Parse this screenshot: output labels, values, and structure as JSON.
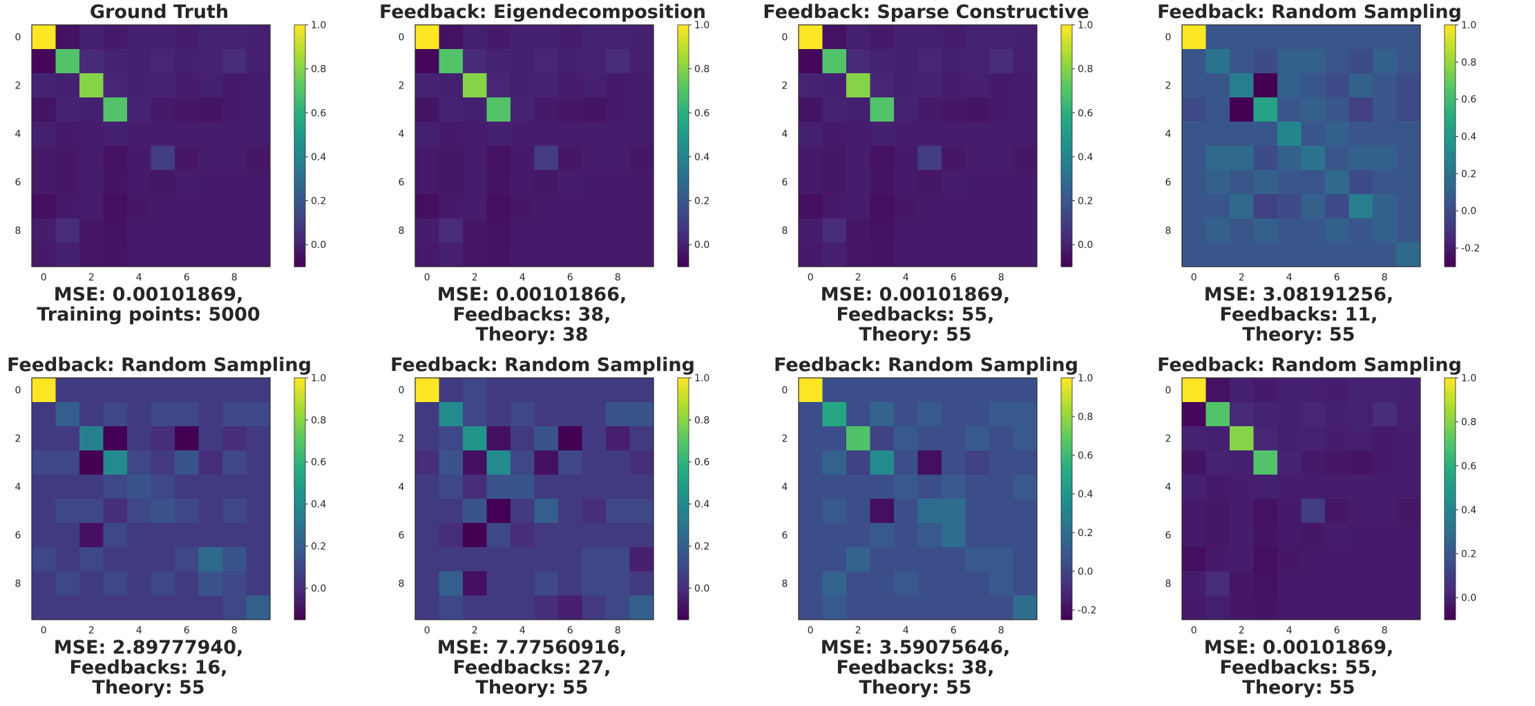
{
  "colors": {
    "colormap": "viridis",
    "text": "#262626",
    "axis_frame": "#262626"
  },
  "chart_data": [
    {
      "type": "heatmap",
      "title": "Ground Truth",
      "caption": [
        "MSE: 0.00101869,",
        "Training points: 5000"
      ],
      "x_ticks": [
        "0",
        "2",
        "4",
        "6",
        "8"
      ],
      "y_ticks": [
        "0",
        "2",
        "4",
        "6",
        "8"
      ],
      "colorbar": {
        "range": [
          -0.1,
          1.0
        ],
        "ticks": [
          "0.0",
          "0.2",
          "0.4",
          "0.6",
          "0.8",
          "1.0"
        ]
      },
      "matrix": [
        [
          1.0,
          -0.05,
          0.0,
          -0.02,
          0.0,
          0.0,
          -0.01,
          0.01,
          0.01,
          0.0
        ],
        [
          -0.08,
          0.7,
          0.03,
          0.01,
          0.0,
          0.02,
          0.0,
          0.01,
          0.04,
          0.0
        ],
        [
          0.01,
          0.0,
          0.8,
          0.02,
          0.0,
          0.01,
          -0.01,
          0.0,
          -0.02,
          -0.01
        ],
        [
          -0.04,
          0.01,
          0.0,
          0.7,
          0.01,
          -0.02,
          -0.03,
          -0.04,
          -0.02,
          -0.01
        ],
        [
          0.0,
          -0.02,
          -0.01,
          0.0,
          -0.01,
          -0.01,
          -0.01,
          -0.01,
          -0.01,
          -0.01
        ],
        [
          -0.02,
          -0.03,
          -0.01,
          -0.05,
          -0.02,
          0.1,
          -0.03,
          -0.01,
          -0.01,
          -0.03
        ],
        [
          -0.02,
          -0.03,
          -0.01,
          -0.04,
          -0.02,
          -0.03,
          -0.01,
          -0.02,
          -0.02,
          -0.02
        ],
        [
          -0.06,
          -0.02,
          -0.01,
          -0.06,
          -0.03,
          -0.02,
          -0.02,
          -0.02,
          -0.02,
          -0.02
        ],
        [
          -0.01,
          0.04,
          -0.03,
          -0.05,
          -0.02,
          -0.02,
          -0.02,
          -0.02,
          -0.02,
          -0.02
        ],
        [
          -0.02,
          0.0,
          -0.03,
          -0.04,
          -0.02,
          -0.02,
          -0.02,
          -0.02,
          -0.02,
          -0.02
        ]
      ]
    },
    {
      "type": "heatmap",
      "title": "Feedback: Eigendecomposition",
      "caption": [
        "MSE: 0.00101866,",
        "Feedbacks: 38,",
        "Theory: 38"
      ],
      "x_ticks": [
        "0",
        "2",
        "4",
        "6",
        "8"
      ],
      "y_ticks": [
        "0",
        "2",
        "4",
        "6",
        "8"
      ],
      "colorbar": {
        "range": [
          -0.1,
          1.0
        ],
        "ticks": [
          "0.0",
          "0.2",
          "0.4",
          "0.6",
          "0.8",
          "1.0"
        ]
      },
      "matrix": [
        [
          1.0,
          -0.05,
          0.0,
          -0.02,
          0.0,
          0.0,
          -0.01,
          0.01,
          0.01,
          0.0
        ],
        [
          -0.08,
          0.7,
          0.03,
          0.01,
          0.0,
          0.02,
          0.0,
          0.01,
          0.04,
          0.0
        ],
        [
          0.01,
          0.0,
          0.8,
          0.02,
          0.0,
          0.01,
          -0.01,
          0.0,
          -0.02,
          -0.01
        ],
        [
          -0.04,
          0.01,
          0.0,
          0.7,
          0.01,
          -0.02,
          -0.03,
          -0.04,
          -0.02,
          -0.01
        ],
        [
          0.0,
          -0.02,
          -0.01,
          0.0,
          -0.01,
          -0.01,
          -0.01,
          -0.01,
          -0.01,
          -0.01
        ],
        [
          -0.02,
          -0.03,
          -0.01,
          -0.05,
          -0.02,
          0.1,
          -0.03,
          -0.01,
          -0.01,
          -0.03
        ],
        [
          -0.02,
          -0.03,
          -0.01,
          -0.04,
          -0.02,
          -0.03,
          -0.01,
          -0.02,
          -0.02,
          -0.02
        ],
        [
          -0.06,
          -0.02,
          -0.01,
          -0.06,
          -0.03,
          -0.02,
          -0.02,
          -0.02,
          -0.02,
          -0.02
        ],
        [
          -0.01,
          0.04,
          -0.03,
          -0.05,
          -0.02,
          -0.02,
          -0.02,
          -0.02,
          -0.02,
          -0.02
        ],
        [
          -0.02,
          0.0,
          -0.03,
          -0.04,
          -0.02,
          -0.02,
          -0.02,
          -0.02,
          -0.02,
          -0.02
        ]
      ]
    },
    {
      "type": "heatmap",
      "title": "Feedback: Sparse Constructive",
      "caption": [
        "MSE: 0.00101869,",
        "Feedbacks: 55,",
        "Theory: 55"
      ],
      "x_ticks": [
        "0",
        "2",
        "4",
        "6",
        "8"
      ],
      "y_ticks": [
        "0",
        "2",
        "4",
        "6",
        "8"
      ],
      "colorbar": {
        "range": [
          -0.1,
          1.0
        ],
        "ticks": [
          "0.0",
          "0.2",
          "0.4",
          "0.6",
          "0.8",
          "1.0"
        ]
      },
      "matrix": [
        [
          1.0,
          -0.05,
          0.0,
          -0.02,
          0.0,
          0.0,
          -0.01,
          0.01,
          0.01,
          0.0
        ],
        [
          -0.08,
          0.7,
          0.03,
          0.01,
          0.0,
          0.02,
          0.0,
          0.01,
          0.04,
          0.0
        ],
        [
          0.01,
          0.0,
          0.8,
          0.02,
          0.0,
          0.01,
          -0.01,
          0.0,
          -0.02,
          -0.01
        ],
        [
          -0.04,
          0.01,
          0.0,
          0.7,
          0.01,
          -0.02,
          -0.03,
          -0.04,
          -0.02,
          -0.01
        ],
        [
          0.0,
          -0.02,
          -0.01,
          0.0,
          -0.01,
          -0.01,
          -0.01,
          -0.01,
          -0.01,
          -0.01
        ],
        [
          -0.02,
          -0.03,
          -0.01,
          -0.05,
          -0.02,
          0.1,
          -0.03,
          -0.01,
          -0.01,
          -0.03
        ],
        [
          -0.02,
          -0.03,
          -0.01,
          -0.04,
          -0.02,
          -0.03,
          -0.01,
          -0.02,
          -0.02,
          -0.02
        ],
        [
          -0.06,
          -0.02,
          -0.01,
          -0.06,
          -0.03,
          -0.02,
          -0.02,
          -0.02,
          -0.02,
          -0.02
        ],
        [
          -0.01,
          0.04,
          -0.03,
          -0.05,
          -0.02,
          -0.02,
          -0.02,
          -0.02,
          -0.02,
          -0.02
        ],
        [
          -0.02,
          0.0,
          -0.03,
          -0.04,
          -0.02,
          -0.02,
          -0.02,
          -0.02,
          -0.02,
          -0.02
        ]
      ]
    },
    {
      "type": "heatmap",
      "title": "Feedback: Random Sampling",
      "caption": [
        "MSE: 3.08191256,",
        "Feedbacks: 11,",
        "Theory: 55"
      ],
      "x_ticks": [
        "0",
        "2",
        "4",
        "6",
        "8"
      ],
      "y_ticks": [
        "0",
        "2",
        "4",
        "6",
        "8"
      ],
      "colorbar": {
        "range": [
          -0.3,
          1.0
        ],
        "ticks": [
          "-0.2",
          "0.0",
          "0.2",
          "0.4",
          "0.6",
          "0.8",
          "1.0"
        ]
      },
      "matrix": [
        [
          1.0,
          0.05,
          0.05,
          0.05,
          0.05,
          0.05,
          0.05,
          0.05,
          0.05,
          0.05
        ],
        [
          0.05,
          0.2,
          0.05,
          0.0,
          0.1,
          0.1,
          0.05,
          0.0,
          0.1,
          0.05
        ],
        [
          0.05,
          0.05,
          0.25,
          -0.3,
          0.1,
          0.05,
          0.0,
          0.1,
          0.05,
          0.0
        ],
        [
          0.0,
          0.05,
          -0.3,
          0.45,
          0.05,
          0.1,
          0.05,
          -0.05,
          0.05,
          0.0
        ],
        [
          0.05,
          0.05,
          0.05,
          0.05,
          0.3,
          0.05,
          0.1,
          0.05,
          0.05,
          0.05
        ],
        [
          0.05,
          0.15,
          0.15,
          0.0,
          0.1,
          0.2,
          0.05,
          0.1,
          0.1,
          0.05
        ],
        [
          0.05,
          0.1,
          0.05,
          0.1,
          0.05,
          0.05,
          0.15,
          0.0,
          0.05,
          0.05
        ],
        [
          0.05,
          0.05,
          0.15,
          -0.05,
          0.0,
          0.1,
          0.0,
          0.25,
          0.1,
          0.05
        ],
        [
          0.05,
          0.1,
          0.05,
          0.1,
          0.05,
          0.05,
          0.1,
          0.05,
          0.1,
          0.05
        ],
        [
          0.05,
          0.05,
          0.05,
          0.05,
          0.05,
          0.05,
          0.05,
          0.05,
          0.05,
          0.15
        ]
      ]
    },
    {
      "type": "heatmap",
      "title": "Feedback: Random Sampling",
      "caption": [
        "MSE: 2.89777940,",
        "Feedbacks: 16,",
        "Theory: 55"
      ],
      "x_ticks": [
        "0",
        "2",
        "4",
        "6",
        "8"
      ],
      "y_ticks": [
        "0",
        "2",
        "4",
        "6",
        "8"
      ],
      "colorbar": {
        "range": [
          -0.15,
          1.0
        ],
        "ticks": [
          "0.0",
          "0.2",
          "0.4",
          "0.6",
          "0.8",
          "1.0"
        ]
      },
      "matrix": [
        [
          1.0,
          0.05,
          0.05,
          0.05,
          0.05,
          0.05,
          0.05,
          0.05,
          0.05,
          0.05
        ],
        [
          0.05,
          0.2,
          0.05,
          0.1,
          0.05,
          0.1,
          0.1,
          0.05,
          0.1,
          0.1
        ],
        [
          0.05,
          0.05,
          0.35,
          -0.15,
          0.05,
          0.0,
          -0.15,
          0.05,
          0.0,
          0.05
        ],
        [
          0.1,
          0.1,
          -0.15,
          0.4,
          0.1,
          0.05,
          0.15,
          0.0,
          0.1,
          0.05
        ],
        [
          0.05,
          0.05,
          0.05,
          0.1,
          0.15,
          0.1,
          0.05,
          0.05,
          0.05,
          0.05
        ],
        [
          0.05,
          0.1,
          0.1,
          0.0,
          0.1,
          0.15,
          0.1,
          0.05,
          0.1,
          0.05
        ],
        [
          0.05,
          0.05,
          -0.1,
          0.1,
          0.05,
          0.05,
          0.05,
          0.05,
          0.05,
          0.05
        ],
        [
          0.1,
          0.05,
          0.1,
          0.05,
          0.05,
          0.05,
          0.1,
          0.25,
          0.15,
          0.05
        ],
        [
          0.05,
          0.1,
          0.05,
          0.1,
          0.05,
          0.1,
          0.05,
          0.15,
          0.1,
          0.05
        ],
        [
          0.05,
          0.05,
          0.05,
          0.05,
          0.05,
          0.05,
          0.05,
          0.05,
          0.1,
          0.2
        ]
      ]
    },
    {
      "type": "heatmap",
      "title": "Feedback: Random Sampling",
      "caption": [
        "MSE: 7.77560916,",
        "Feedbacks: 27,",
        "Theory: 55"
      ],
      "x_ticks": [
        "0",
        "2",
        "4",
        "6",
        "8"
      ],
      "y_ticks": [
        "0",
        "2",
        "4",
        "6",
        "8"
      ],
      "colorbar": {
        "range": [
          -0.15,
          1.0
        ],
        "ticks": [
          "0.0",
          "0.2",
          "0.4",
          "0.6",
          "0.8",
          "1.0"
        ]
      },
      "matrix": [
        [
          1.0,
          0.05,
          0.1,
          0.05,
          0.05,
          0.05,
          0.05,
          0.05,
          0.05,
          0.05
        ],
        [
          0.05,
          0.4,
          0.1,
          0.05,
          0.1,
          0.05,
          0.05,
          0.05,
          0.15,
          0.15
        ],
        [
          0.05,
          0.1,
          0.45,
          -0.1,
          0.05,
          0.15,
          -0.15,
          0.05,
          -0.05,
          0.05
        ],
        [
          0.0,
          0.15,
          -0.1,
          0.4,
          0.1,
          -0.1,
          0.1,
          0.05,
          0.05,
          0.0
        ],
        [
          0.05,
          0.1,
          0.0,
          0.15,
          0.15,
          0.05,
          0.05,
          0.05,
          0.05,
          0.05
        ],
        [
          0.05,
          0.05,
          0.15,
          -0.15,
          0.05,
          0.2,
          0.05,
          0.0,
          0.1,
          0.1
        ],
        [
          0.05,
          0.0,
          -0.15,
          0.1,
          0.0,
          0.05,
          0.05,
          0.05,
          0.05,
          0.05
        ],
        [
          0.05,
          0.05,
          0.05,
          0.05,
          0.05,
          0.05,
          0.05,
          0.1,
          0.1,
          -0.05
        ],
        [
          0.05,
          0.2,
          -0.1,
          0.05,
          0.05,
          0.1,
          0.05,
          0.1,
          0.1,
          0.05
        ],
        [
          0.05,
          0.1,
          0.05,
          0.05,
          0.05,
          0.0,
          -0.05,
          0.05,
          0.1,
          0.2
        ]
      ]
    },
    {
      "type": "heatmap",
      "title": "Feedback: Random Sampling",
      "caption": [
        "MSE: 3.59075646,",
        "Feedbacks: 38,",
        "Theory: 55"
      ],
      "x_ticks": [
        "0",
        "2",
        "4",
        "6",
        "8"
      ],
      "y_ticks": [
        "0",
        "2",
        "4",
        "6",
        "8"
      ],
      "colorbar": {
        "range": [
          -0.25,
          1.0
        ],
        "ticks": [
          "-0.2",
          "0.0",
          "0.2",
          "0.4",
          "0.6",
          "0.8",
          "1.0"
        ]
      },
      "matrix": [
        [
          1.0,
          0.05,
          0.05,
          0.05,
          0.05,
          0.05,
          0.05,
          0.05,
          0.05,
          0.05
        ],
        [
          0.05,
          0.5,
          0.05,
          0.15,
          0.05,
          0.1,
          0.05,
          0.05,
          0.1,
          0.1
        ],
        [
          0.05,
          0.05,
          0.65,
          0.0,
          0.1,
          0.05,
          0.05,
          0.1,
          0.05,
          0.1
        ],
        [
          0.05,
          0.15,
          0.0,
          0.35,
          0.05,
          -0.2,
          0.05,
          0.0,
          0.05,
          0.05
        ],
        [
          0.05,
          0.05,
          0.05,
          0.05,
          0.1,
          0.05,
          0.1,
          0.05,
          0.05,
          0.1
        ],
        [
          0.05,
          0.1,
          0.05,
          -0.2,
          0.05,
          0.2,
          0.2,
          0.05,
          0.05,
          0.05
        ],
        [
          0.05,
          0.05,
          0.05,
          0.1,
          0.05,
          0.1,
          0.2,
          0.05,
          0.05,
          0.05
        ],
        [
          0.05,
          0.05,
          0.15,
          0.05,
          0.05,
          0.05,
          0.05,
          0.1,
          0.1,
          0.05
        ],
        [
          0.05,
          0.15,
          0.05,
          0.05,
          0.1,
          0.05,
          0.05,
          0.05,
          0.1,
          0.05
        ],
        [
          0.05,
          0.1,
          0.05,
          0.05,
          0.05,
          0.05,
          0.05,
          0.05,
          0.05,
          0.2
        ]
      ]
    },
    {
      "type": "heatmap",
      "title": "Feedback: Random Sampling",
      "caption": [
        "MSE: 0.00101869,",
        "Feedbacks: 55,",
        "Theory: 55"
      ],
      "x_ticks": [
        "0",
        "2",
        "4",
        "6",
        "8"
      ],
      "y_ticks": [
        "0",
        "2",
        "4",
        "6",
        "8"
      ],
      "colorbar": {
        "range": [
          -0.1,
          1.0
        ],
        "ticks": [
          "0.0",
          "0.2",
          "0.4",
          "0.6",
          "0.8",
          "1.0"
        ]
      },
      "matrix": [
        [
          1.0,
          -0.05,
          0.0,
          -0.02,
          0.0,
          0.0,
          -0.01,
          0.01,
          0.01,
          0.0
        ],
        [
          -0.08,
          0.7,
          0.03,
          0.01,
          0.0,
          0.02,
          0.0,
          0.01,
          0.04,
          0.0
        ],
        [
          0.01,
          0.0,
          0.8,
          0.02,
          0.0,
          0.01,
          -0.01,
          0.0,
          -0.02,
          -0.01
        ],
        [
          -0.04,
          0.01,
          0.0,
          0.7,
          0.01,
          -0.02,
          -0.03,
          -0.04,
          -0.02,
          -0.01
        ],
        [
          0.0,
          -0.02,
          -0.01,
          0.0,
          -0.01,
          -0.01,
          -0.01,
          -0.01,
          -0.01,
          -0.01
        ],
        [
          -0.02,
          -0.03,
          -0.01,
          -0.05,
          -0.02,
          0.1,
          -0.03,
          -0.01,
          -0.01,
          -0.03
        ],
        [
          -0.02,
          -0.03,
          -0.01,
          -0.04,
          -0.02,
          -0.03,
          -0.01,
          -0.02,
          -0.02,
          -0.02
        ],
        [
          -0.06,
          -0.02,
          -0.01,
          -0.06,
          -0.03,
          -0.02,
          -0.02,
          -0.02,
          -0.02,
          -0.02
        ],
        [
          -0.01,
          0.04,
          -0.03,
          -0.05,
          -0.02,
          -0.02,
          -0.02,
          -0.02,
          -0.02,
          -0.02
        ],
        [
          -0.02,
          0.0,
          -0.03,
          -0.04,
          -0.02,
          -0.02,
          -0.02,
          -0.02,
          -0.02,
          -0.02
        ]
      ]
    }
  ]
}
